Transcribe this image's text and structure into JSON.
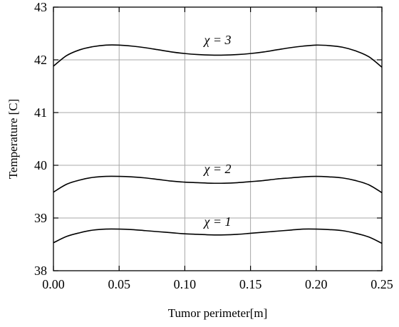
{
  "chart_data": {
    "type": "line",
    "title": "",
    "xlabel": "Tumor perimeter[m]",
    "ylabel": "Temperature [C]",
    "xlim": [
      0,
      0.25
    ],
    "ylim": [
      38,
      43
    ],
    "x_ticks": [
      "0.00",
      "0.05",
      "0.10",
      "0.15",
      "0.20",
      "0.25"
    ],
    "y_ticks": [
      "38",
      "39",
      "40",
      "41",
      "42",
      "43"
    ],
    "grid": true,
    "x": [
      0,
      0.01,
      0.02,
      0.03,
      0.04,
      0.05,
      0.06,
      0.07,
      0.08,
      0.09,
      0.1,
      0.11,
      0.12,
      0.13,
      0.14,
      0.15,
      0.16,
      0.17,
      0.18,
      0.19,
      0.2,
      0.21,
      0.22,
      0.23,
      0.24,
      0.25
    ],
    "series": [
      {
        "annotation": "χ = 3",
        "values": [
          41.88,
          42.08,
          42.19,
          42.25,
          42.28,
          42.28,
          42.26,
          42.23,
          42.19,
          42.15,
          42.12,
          42.1,
          42.09,
          42.09,
          42.1,
          42.12,
          42.15,
          42.19,
          42.23,
          42.26,
          42.28,
          42.27,
          42.24,
          42.17,
          42.06,
          41.86
        ]
      },
      {
        "annotation": "χ = 2",
        "values": [
          39.49,
          39.64,
          39.72,
          39.77,
          39.79,
          39.79,
          39.78,
          39.76,
          39.73,
          39.7,
          39.68,
          39.67,
          39.66,
          39.66,
          39.67,
          39.69,
          39.71,
          39.74,
          39.76,
          39.78,
          39.79,
          39.78,
          39.76,
          39.71,
          39.63,
          39.48
        ]
      },
      {
        "annotation": "χ = 1",
        "values": [
          38.53,
          38.65,
          38.72,
          38.77,
          38.79,
          38.79,
          38.78,
          38.76,
          38.74,
          38.72,
          38.7,
          38.69,
          38.68,
          38.68,
          38.69,
          38.71,
          38.73,
          38.75,
          38.77,
          38.79,
          38.79,
          38.78,
          38.76,
          38.71,
          38.64,
          38.52
        ]
      }
    ],
    "annotations": [
      {
        "text": "χ = 3",
        "x": 0.125,
        "y": 42.3
      },
      {
        "text": "χ = 2",
        "x": 0.125,
        "y": 39.85
      },
      {
        "text": "χ = 1",
        "x": 0.125,
        "y": 38.85
      }
    ]
  }
}
